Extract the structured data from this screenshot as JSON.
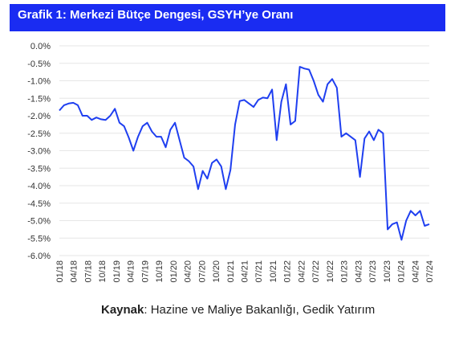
{
  "header": {
    "title": "Grafik 1: Merkezi Bütçe Dengesi, GSYH’ye Oranı"
  },
  "source": {
    "label": "Kaynak",
    "text": ": Hazine ve Maliye Bakanlığı, Gedik Yatırım"
  },
  "colors": {
    "header_bg": "#1a2cf2",
    "line": "#1f3ff0"
  },
  "chart_data": {
    "type": "line",
    "title": "Grafik 1: Merkezi Bütçe Dengesi, GSYH’ye Oranı",
    "xlabel": "",
    "ylabel": "",
    "grid": true,
    "ylim": [
      -6.0,
      0.0
    ],
    "y_ticks": [
      "0.0%",
      "-0.5%",
      "-1.0%",
      "-1.5%",
      "-2.0%",
      "-2.5%",
      "-3.0%",
      "-3.5%",
      "-4.0%",
      "-4.5%",
      "-5.0%",
      "-5.5%",
      "-6.0%"
    ],
    "x_ticks": [
      "01/18",
      "04/18",
      "07/18",
      "10/18",
      "01/19",
      "04/19",
      "07/19",
      "10/19",
      "01/20",
      "04/20",
      "07/20",
      "10/20",
      "01/21",
      "04/21",
      "07/21",
      "10/21",
      "01/22",
      "04/22",
      "07/22",
      "10/22",
      "01/23",
      "04/23",
      "07/23",
      "10/23",
      "01/24",
      "04/24",
      "07/24"
    ],
    "series": [
      {
        "values": [
          -1.85,
          -1.7,
          -1.65,
          -1.63,
          -1.7,
          -2.0,
          -2.0,
          -2.12,
          -2.05,
          -2.1,
          -2.12,
          -2.0,
          -1.8,
          -2.2,
          -2.3,
          -2.62,
          -3.0,
          -2.6,
          -2.3,
          -2.2,
          -2.45,
          -2.6,
          -2.6,
          -2.9,
          -2.4,
          -2.2,
          -2.7,
          -3.2,
          -3.3,
          -3.45,
          -4.1,
          -3.58,
          -3.8,
          -3.35,
          -3.25,
          -3.45,
          -4.1,
          -3.55,
          -2.25,
          -1.58,
          -1.55,
          -1.65,
          -1.75,
          -1.55,
          -1.48,
          -1.5,
          -1.25,
          -2.7,
          -1.6,
          -1.1,
          -2.25,
          -2.15,
          -0.6,
          -0.65,
          -0.68,
          -1.0,
          -1.4,
          -1.6,
          -1.1,
          -0.95,
          -1.2,
          -2.6,
          -2.5,
          -2.6,
          -2.7,
          -3.75,
          -2.65,
          -2.45,
          -2.7,
          -2.4,
          -2.5,
          -5.25,
          -5.1,
          -5.05,
          -5.55,
          -5.0,
          -4.72,
          -4.85,
          -4.72,
          -5.15,
          -5.1
        ]
      }
    ]
  }
}
